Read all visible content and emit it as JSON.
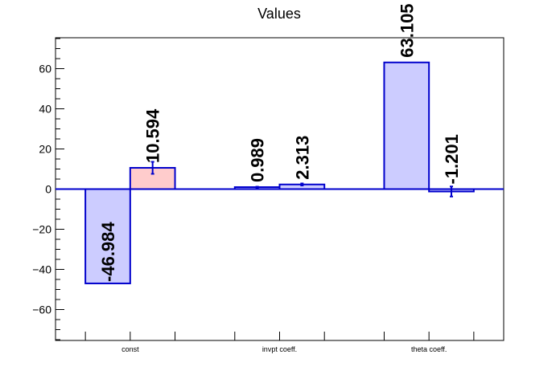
{
  "chart_data": {
    "type": "bar",
    "title": "Values",
    "xlabel": "",
    "ylabel": "",
    "categories": [
      "const",
      "invpt coeff.",
      "theta coeff."
    ],
    "ylim": [
      -75.4,
      75.4
    ],
    "y_ticks": [
      -60,
      -40,
      -20,
      0,
      20,
      40,
      60
    ],
    "y_tick_labels": [
      "−60",
      "−40",
      "−20",
      "0",
      "20",
      "40",
      "60"
    ],
    "grid": false,
    "bars": [
      {
        "category": "const",
        "slot": 0,
        "value": -46.984,
        "label": "-46.984",
        "error": 0,
        "fill": "#ccccff",
        "stroke": "#0000cc"
      },
      {
        "category": "const",
        "slot": 1,
        "value": 10.594,
        "label": "10.594",
        "error": 3.0,
        "fill": "#ffcccc",
        "stroke": "#0000cc"
      },
      {
        "category": "invpt coeff.",
        "slot": 0,
        "value": 0.989,
        "label": "0.989",
        "error": 0.2,
        "fill": "#ccccff",
        "stroke": "#0000cc"
      },
      {
        "category": "invpt coeff.",
        "slot": 1,
        "value": 2.313,
        "label": "2.313",
        "error": 0.5,
        "fill": "#ccccff",
        "stroke": "#0000cc"
      },
      {
        "category": "theta coeff.",
        "slot": 0,
        "value": 63.105,
        "label": "63.105",
        "error": 0,
        "fill": "#ccccff",
        "stroke": "#0000cc"
      },
      {
        "category": "theta coeff.",
        "slot": 1,
        "value": -1.201,
        "label": "-1.201",
        "error": 2.5,
        "fill": "#ccccff",
        "stroke": "#0000cc"
      }
    ],
    "colors": {
      "bar_stroke": "#0000cc",
      "bar_fill": "#ccccff",
      "highlight_fill": "#ffcccc",
      "error_bar": "#0000cc",
      "zero_line": "#0000cc"
    }
  }
}
